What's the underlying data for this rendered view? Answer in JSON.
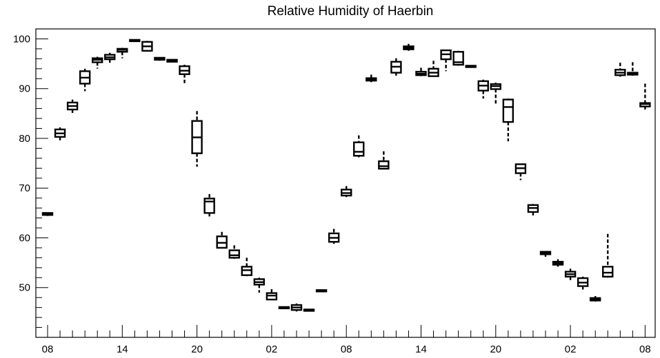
{
  "chart_data": {
    "type": "box",
    "title": "Relative Humidity of Haerbin",
    "xlabel": "",
    "ylabel": "",
    "ylim": [
      40,
      102
    ],
    "y_ticks": [
      50,
      60,
      70,
      80,
      90,
      100
    ],
    "x_tick_labels": [
      "08",
      "14",
      "20",
      "02",
      "08",
      "14",
      "20",
      "02",
      "08"
    ],
    "x_tick_hours": [
      0,
      6,
      12,
      18,
      24,
      30,
      36,
      42,
      48
    ],
    "grid": false,
    "legend": "none",
    "colors": {
      "line": "#000000",
      "background": "#ffffff"
    },
    "boxes": [
      {
        "hour": 0,
        "min": 64.4,
        "q1": 64.6,
        "median": 64.8,
        "q3": 65.0,
        "max": 65.1
      },
      {
        "hour": 1,
        "min": 79.3,
        "q1": 80.3,
        "median": 81.0,
        "q3": 81.8,
        "max": 82.2
      },
      {
        "hour": 2,
        "min": 84.7,
        "q1": 85.8,
        "median": 86.5,
        "q3": 87.2,
        "max": 87.8
      },
      {
        "hour": 3,
        "min": 89.5,
        "q1": 91.0,
        "median": 92.2,
        "q3": 93.5,
        "max": 94.0
      },
      {
        "hour": 4,
        "min": 94.0,
        "q1": 95.3,
        "median": 95.8,
        "q3": 96.1,
        "max": 96.4
      },
      {
        "hour": 5,
        "min": 95.2,
        "q1": 95.9,
        "median": 96.3,
        "q3": 96.8,
        "max": 97.2
      },
      {
        "hour": 6,
        "min": 96.1,
        "q1": 97.4,
        "median": 97.8,
        "q3": 98.0,
        "max": 98.2
      },
      {
        "hour": 7,
        "min": 99.5,
        "q1": 99.6,
        "median": 99.7,
        "q3": 99.8,
        "max": 99.9
      },
      {
        "hour": 8,
        "min": 97.5,
        "q1": 97.6,
        "median": 98.5,
        "q3": 99.4,
        "max": 99.6
      },
      {
        "hour": 9,
        "min": 95.6,
        "q1": 95.8,
        "median": 96.0,
        "q3": 96.2,
        "max": 96.3
      },
      {
        "hour": 10,
        "min": 95.3,
        "q1": 95.4,
        "median": 95.6,
        "q3": 95.8,
        "max": 95.9
      },
      {
        "hour": 11,
        "min": 90.7,
        "q1": 92.9,
        "median": 93.6,
        "q3": 94.5,
        "max": 94.8
      },
      {
        "hour": 12,
        "min": 74.3,
        "q1": 77.0,
        "median": 80.2,
        "q3": 83.5,
        "max": 85.5
      },
      {
        "hour": 13,
        "min": 63.9,
        "q1": 65.0,
        "median": 67.3,
        "q3": 67.9,
        "max": 68.8
      },
      {
        "hour": 14,
        "min": 57.9,
        "q1": 58.0,
        "median": 59.0,
        "q3": 60.3,
        "max": 61.2
      },
      {
        "hour": 15,
        "min": 55.8,
        "q1": 56.0,
        "median": 56.5,
        "q3": 57.5,
        "max": 58.5
      },
      {
        "hour": 16,
        "min": 52.3,
        "q1": 52.5,
        "median": 53.5,
        "q3": 54.2,
        "max": 56.0
      },
      {
        "hour": 17,
        "min": 49.0,
        "q1": 50.6,
        "median": 51.1,
        "q3": 51.7,
        "max": 52.0
      },
      {
        "hour": 18,
        "min": 47.5,
        "q1": 47.6,
        "median": 48.4,
        "q3": 48.9,
        "max": 49.7
      },
      {
        "hour": 19,
        "min": 45.8,
        "q1": 45.9,
        "median": 46.0,
        "q3": 46.1,
        "max": 46.2
      },
      {
        "hour": 20,
        "min": 45.2,
        "q1": 45.5,
        "median": 46.0,
        "q3": 46.5,
        "max": 46.8
      },
      {
        "hour": 21,
        "min": 45.3,
        "q1": 45.4,
        "median": 45.5,
        "q3": 45.6,
        "max": 45.7
      },
      {
        "hour": 22,
        "min": 49.2,
        "q1": 49.3,
        "median": 49.4,
        "q3": 49.5,
        "max": 49.6
      },
      {
        "hour": 23,
        "min": 58.8,
        "q1": 59.2,
        "median": 60.0,
        "q3": 60.9,
        "max": 61.8
      },
      {
        "hour": 24,
        "min": 68.2,
        "q1": 68.5,
        "median": 69.0,
        "q3": 69.7,
        "max": 70.4
      },
      {
        "hour": 25,
        "min": 76.2,
        "q1": 76.5,
        "median": 77.3,
        "q3": 79.2,
        "max": 80.6
      },
      {
        "hour": 26,
        "min": 91.3,
        "q1": 91.6,
        "median": 91.9,
        "q3": 92.1,
        "max": 92.8
      },
      {
        "hour": 27,
        "min": 73.8,
        "q1": 73.9,
        "median": 74.4,
        "q3": 75.4,
        "max": 77.4
      },
      {
        "hour": 28,
        "min": 92.6,
        "q1": 93.2,
        "median": 94.4,
        "q3": 95.4,
        "max": 96.1
      },
      {
        "hour": 29,
        "min": 97.6,
        "q1": 97.9,
        "median": 98.2,
        "q3": 98.5,
        "max": 99.0
      },
      {
        "hour": 30,
        "min": 92.5,
        "q1": 92.7,
        "median": 93.0,
        "q3": 93.4,
        "max": 94.2
      },
      {
        "hour": 31,
        "min": 92.4,
        "q1": 92.5,
        "median": 93.2,
        "q3": 94.0,
        "max": 95.6
      },
      {
        "hour": 32,
        "min": 93.5,
        "q1": 95.9,
        "median": 96.9,
        "q3": 97.7,
        "max": 97.8
      },
      {
        "hour": 33,
        "min": 94.6,
        "q1": 94.8,
        "median": 95.3,
        "q3": 97.4,
        "max": 97.6
      },
      {
        "hour": 34,
        "min": 94.3,
        "q1": 94.4,
        "median": 94.5,
        "q3": 94.6,
        "max": 94.7
      },
      {
        "hour": 35,
        "min": 88.0,
        "q1": 89.6,
        "median": 90.6,
        "q3": 91.5,
        "max": 91.8
      },
      {
        "hour": 36,
        "min": 86.8,
        "q1": 89.9,
        "median": 90.5,
        "q3": 90.9,
        "max": 91.2
      },
      {
        "hour": 37,
        "min": 79.4,
        "q1": 83.3,
        "median": 86.3,
        "q3": 87.8,
        "max": 88.0
      },
      {
        "hour": 38,
        "min": 71.6,
        "q1": 73.0,
        "median": 74.0,
        "q3": 74.8,
        "max": 74.9
      },
      {
        "hour": 39,
        "min": 64.3,
        "q1": 65.2,
        "median": 66.0,
        "q3": 66.6,
        "max": 66.8
      },
      {
        "hour": 40,
        "min": 56.2,
        "q1": 56.7,
        "median": 57.0,
        "q3": 57.2,
        "max": 57.3
      },
      {
        "hour": 41,
        "min": 54.2,
        "q1": 54.6,
        "median": 54.9,
        "q3": 55.2,
        "max": 55.7
      },
      {
        "hour": 42,
        "min": 51.5,
        "q1": 52.2,
        "median": 52.7,
        "q3": 53.2,
        "max": 53.8
      },
      {
        "hour": 43,
        "min": 49.5,
        "q1": 50.3,
        "median": 51.0,
        "q3": 51.9,
        "max": 52.2
      },
      {
        "hour": 44,
        "min": 47.2,
        "q1": 47.4,
        "median": 47.6,
        "q3": 47.9,
        "max": 48.3
      },
      {
        "hour": 45,
        "min": 52.0,
        "q1": 52.2,
        "median": 53.0,
        "q3": 54.2,
        "max": 60.8
      },
      {
        "hour": 46,
        "min": 92.4,
        "q1": 92.7,
        "median": 93.2,
        "q3": 93.8,
        "max": 95.2
      },
      {
        "hour": 47,
        "min": 92.6,
        "q1": 92.8,
        "median": 93.0,
        "q3": 93.2,
        "max": 95.3
      },
      {
        "hour": 48,
        "min": 85.8,
        "q1": 86.4,
        "median": 86.9,
        "q3": 87.1,
        "max": 91.0
      }
    ]
  }
}
